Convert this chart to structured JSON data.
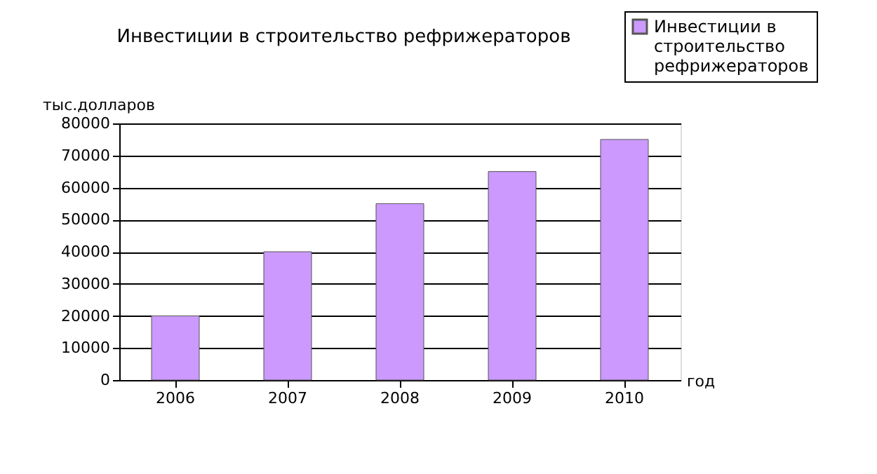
{
  "chart_data": {
    "type": "bar",
    "title": "Инвестиции в строительство рефрижераторов",
    "xlabel": "год",
    "ylabel": "тыс.долларов",
    "categories": [
      "2006",
      "2007",
      "2008",
      "2009",
      "2010"
    ],
    "series": [
      {
        "name": "Инвестиции в строительство рефрижераторов",
        "color": "#cc99ff",
        "values": [
          20000,
          40000,
          55000,
          65000,
          75000
        ]
      }
    ],
    "ylim": [
      0,
      80000
    ],
    "yticks": [
      0,
      10000,
      20000,
      30000,
      40000,
      50000,
      60000,
      70000,
      80000
    ],
    "grid": "y",
    "legend": "top right"
  }
}
